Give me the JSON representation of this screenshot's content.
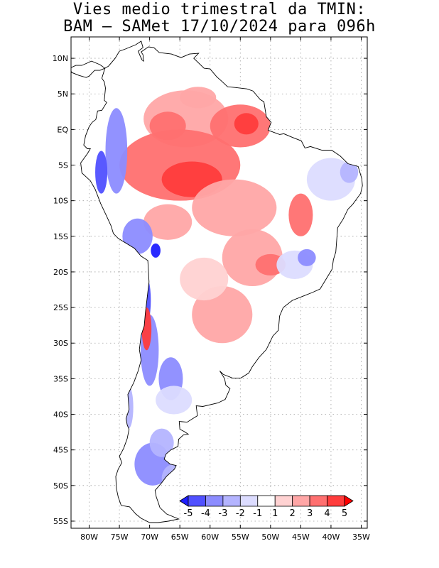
{
  "title": {
    "line1": "Vies medio trimestral da TMIN:",
    "line2": "BAM – SAMet 17/10/2024  para 096h"
  },
  "map": {
    "lon_range": [
      -83,
      -34
    ],
    "lat_range": [
      -56,
      13
    ],
    "grid": "dotted",
    "lat_ticks": [
      {
        "lat": 10,
        "label": "10N"
      },
      {
        "lat": 5,
        "label": "5N"
      },
      {
        "lat": 0,
        "label": "EQ"
      },
      {
        "lat": -5,
        "label": "5S"
      },
      {
        "lat": -10,
        "label": "10S"
      },
      {
        "lat": -15,
        "label": "15S"
      },
      {
        "lat": -20,
        "label": "20S"
      },
      {
        "lat": -25,
        "label": "25S"
      },
      {
        "lat": -30,
        "label": "30S"
      },
      {
        "lat": -35,
        "label": "35S"
      },
      {
        "lat": -40,
        "label": "40S"
      },
      {
        "lat": -45,
        "label": "45S"
      },
      {
        "lat": -50,
        "label": "50S"
      },
      {
        "lat": -55,
        "label": "55S"
      }
    ],
    "lon_ticks": [
      {
        "lon": -80,
        "label": "80W"
      },
      {
        "lon": -75,
        "label": "75W"
      },
      {
        "lon": -70,
        "label": "70W"
      },
      {
        "lon": -65,
        "label": "65W"
      },
      {
        "lon": -60,
        "label": "60W"
      },
      {
        "lon": -55,
        "label": "55W"
      },
      {
        "lon": -50,
        "label": "50W"
      },
      {
        "lon": -45,
        "label": "45W"
      },
      {
        "lon": -40,
        "label": "40W"
      },
      {
        "lon": -35,
        "label": "35W"
      }
    ],
    "continent_outline": [
      [
        -77.4,
        8.6
      ],
      [
        -76.8,
        8.9
      ],
      [
        -75.7,
        10.0
      ],
      [
        -75.0,
        11.0
      ],
      [
        -74.0,
        11.3
      ],
      [
        -72.3,
        11.9
      ],
      [
        -71.4,
        12.4
      ],
      [
        -71.1,
        11.5
      ],
      [
        -71.9,
        11.0
      ],
      [
        -71.6,
        10.4
      ],
      [
        -71.3,
        9.8
      ],
      [
        -71.0,
        9.6
      ],
      [
        -71.1,
        10.5
      ],
      [
        -71.4,
        10.9
      ],
      [
        -70.2,
        11.6
      ],
      [
        -69.3,
        11.5
      ],
      [
        -68.4,
        10.8
      ],
      [
        -66.4,
        10.6
      ],
      [
        -64.8,
        10.1
      ],
      [
        -63.4,
        10.6
      ],
      [
        -61.9,
        10.7
      ],
      [
        -62.7,
        10.0
      ],
      [
        -61.0,
        8.6
      ],
      [
        -60.0,
        8.5
      ],
      [
        -58.9,
        7.4
      ],
      [
        -58.1,
        6.8
      ],
      [
        -57.1,
        6.0
      ],
      [
        -55.9,
        5.9
      ],
      [
        -54.9,
        5.8
      ],
      [
        -53.9,
        5.7
      ],
      [
        -52.9,
        5.4
      ],
      [
        -51.7,
        4.2
      ],
      [
        -51.1,
        3.9
      ],
      [
        -50.7,
        1.8
      ],
      [
        -49.9,
        1.0
      ],
      [
        -50.4,
        -0.1
      ],
      [
        -48.5,
        -0.7
      ],
      [
        -47.8,
        -0.6
      ],
      [
        -46.4,
        -1.1
      ],
      [
        -44.9,
        -1.6
      ],
      [
        -44.3,
        -2.6
      ],
      [
        -43.4,
        -2.4
      ],
      [
        -41.5,
        -2.9
      ],
      [
        -39.9,
        -2.9
      ],
      [
        -38.5,
        -3.7
      ],
      [
        -37.2,
        -4.8
      ],
      [
        -35.5,
        -5.2
      ],
      [
        -34.9,
        -6.9
      ],
      [
        -34.8,
        -7.9
      ],
      [
        -35.1,
        -9.0
      ],
      [
        -36.4,
        -10.5
      ],
      [
        -37.2,
        -11.2
      ],
      [
        -38.0,
        -12.6
      ],
      [
        -38.9,
        -13.8
      ],
      [
        -39.0,
        -15.0
      ],
      [
        -39.2,
        -17.2
      ],
      [
        -39.6,
        -18.3
      ],
      [
        -39.8,
        -19.6
      ],
      [
        -40.8,
        -21.0
      ],
      [
        -41.8,
        -22.4
      ],
      [
        -43.1,
        -22.9
      ],
      [
        -44.6,
        -23.4
      ],
      [
        -46.4,
        -24.0
      ],
      [
        -47.9,
        -25.0
      ],
      [
        -48.5,
        -26.2
      ],
      [
        -48.7,
        -28.2
      ],
      [
        -49.6,
        -29.0
      ],
      [
        -50.7,
        -30.9
      ],
      [
        -51.9,
        -32.0
      ],
      [
        -53.0,
        -33.3
      ],
      [
        -53.6,
        -34.2
      ],
      [
        -54.9,
        -34.9
      ],
      [
        -56.3,
        -34.9
      ],
      [
        -57.8,
        -34.4
      ],
      [
        -58.4,
        -33.9
      ],
      [
        -57.6,
        -35.0
      ],
      [
        -57.4,
        -35.9
      ],
      [
        -56.7,
        -36.4
      ],
      [
        -57.5,
        -37.9
      ],
      [
        -58.7,
        -38.4
      ],
      [
        -61.2,
        -38.9
      ],
      [
        -62.3,
        -38.8
      ],
      [
        -62.1,
        -40.2
      ],
      [
        -63.8,
        -41.1
      ],
      [
        -65.1,
        -41.0
      ],
      [
        -65.0,
        -42.1
      ],
      [
        -64.3,
        -42.4
      ],
      [
        -63.6,
        -42.8
      ],
      [
        -64.4,
        -42.9
      ],
      [
        -65.2,
        -43.5
      ],
      [
        -65.3,
        -44.5
      ],
      [
        -66.5,
        -45.0
      ],
      [
        -67.3,
        -45.6
      ],
      [
        -67.6,
        -46.3
      ],
      [
        -66.6,
        -47.0
      ],
      [
        -65.6,
        -47.2
      ],
      [
        -65.9,
        -47.7
      ],
      [
        -67.2,
        -48.7
      ],
      [
        -68.0,
        -49.6
      ],
      [
        -68.7,
        -50.3
      ],
      [
        -69.1,
        -50.7
      ],
      [
        -68.9,
        -51.6
      ],
      [
        -68.6,
        -52.3
      ],
      [
        -68.3,
        -53.1
      ],
      [
        -67.2,
        -54.0
      ],
      [
        -65.2,
        -54.7
      ],
      [
        -66.9,
        -55.0
      ],
      [
        -68.6,
        -55.2
      ],
      [
        -70.0,
        -55.2
      ],
      [
        -71.4,
        -54.6
      ],
      [
        -72.3,
        -54.0
      ],
      [
        -73.3,
        -53.0
      ],
      [
        -74.7,
        -52.8
      ],
      [
        -75.2,
        -51.6
      ],
      [
        -75.5,
        -50.4
      ],
      [
        -75.6,
        -48.7
      ],
      [
        -75.2,
        -47.7
      ],
      [
        -74.6,
        -46.8
      ],
      [
        -75.0,
        -45.9
      ],
      [
        -74.3,
        -44.8
      ],
      [
        -73.7,
        -43.4
      ],
      [
        -73.4,
        -42.1
      ],
      [
        -73.7,
        -41.5
      ],
      [
        -73.9,
        -40.6
      ],
      [
        -73.4,
        -39.3
      ],
      [
        -73.6,
        -37.2
      ],
      [
        -72.6,
        -35.5
      ],
      [
        -71.9,
        -33.9
      ],
      [
        -71.4,
        -32.4
      ],
      [
        -71.7,
        -30.9
      ],
      [
        -71.4,
        -28.9
      ],
      [
        -70.9,
        -27.6
      ],
      [
        -70.7,
        -25.7
      ],
      [
        -70.4,
        -23.6
      ],
      [
        -70.1,
        -21.4
      ],
      [
        -70.3,
        -18.4
      ],
      [
        -71.4,
        -17.8
      ],
      [
        -72.5,
        -16.7
      ],
      [
        -75.2,
        -15.3
      ],
      [
        -76.0,
        -14.6
      ],
      [
        -76.4,
        -13.5
      ],
      [
        -77.1,
        -12.2
      ],
      [
        -78.1,
        -10.4
      ],
      [
        -79.0,
        -8.4
      ],
      [
        -79.8,
        -7.2
      ],
      [
        -81.2,
        -6.1
      ],
      [
        -81.4,
        -4.7
      ],
      [
        -80.3,
        -3.4
      ],
      [
        -79.8,
        -2.7
      ],
      [
        -80.3,
        -2.7
      ],
      [
        -80.9,
        -2.2
      ],
      [
        -80.6,
        -0.9
      ],
      [
        -80.0,
        0.4
      ],
      [
        -79.5,
        1.0
      ],
      [
        -78.9,
        1.4
      ],
      [
        -78.6,
        2.6
      ],
      [
        -77.9,
        2.7
      ],
      [
        -77.1,
        3.8
      ],
      [
        -77.5,
        4.1
      ],
      [
        -77.3,
        5.8
      ],
      [
        -77.5,
        6.7
      ],
      [
        -77.9,
        7.2
      ],
      [
        -77.4,
        8.6
      ]
    ],
    "central_america_outline": [
      [
        -77.4,
        8.6
      ],
      [
        -78.2,
        9.1
      ],
      [
        -79.6,
        9.6
      ],
      [
        -81.2,
        9.0
      ],
      [
        -82.2,
        9.0
      ],
      [
        -83.2,
        8.6
      ],
      [
        -82.9,
        8.0
      ],
      [
        -81.7,
        7.6
      ],
      [
        -80.5,
        7.3
      ],
      [
        -80.0,
        7.5
      ],
      [
        -79.1,
        8.3
      ],
      [
        -78.2,
        8.3
      ],
      [
        -77.4,
        8.6
      ]
    ],
    "anomaly_blobs": [
      {
        "lon": -64,
        "lat": 1.5,
        "rx": 7,
        "ry": 4,
        "value": 2
      },
      {
        "lon": -65,
        "lat": -5,
        "rx": 10,
        "ry": 5,
        "value": 3
      },
      {
        "lon": -63,
        "lat": -7,
        "rx": 5,
        "ry": 2.5,
        "value": 4
      },
      {
        "lon": -55,
        "lat": 0.5,
        "rx": 5,
        "ry": 3,
        "value": 3
      },
      {
        "lon": -54,
        "lat": 0.8,
        "rx": 2,
        "ry": 1.5,
        "value": 4
      },
      {
        "lon": -67,
        "lat": 0.5,
        "rx": 3,
        "ry": 2,
        "value": 3
      },
      {
        "lon": -62,
        "lat": 4.5,
        "rx": 3,
        "ry": 1.5,
        "value": 2
      },
      {
        "lon": -56,
        "lat": -11,
        "rx": 7,
        "ry": 4,
        "value": 2
      },
      {
        "lon": -67,
        "lat": -13,
        "rx": 4,
        "ry": 2.5,
        "value": 2
      },
      {
        "lon": -45,
        "lat": -12,
        "rx": 2,
        "ry": 3,
        "value": 3
      },
      {
        "lon": -53,
        "lat": -18,
        "rx": 5,
        "ry": 4,
        "value": 2
      },
      {
        "lon": -50,
        "lat": -19,
        "rx": 2.5,
        "ry": 1.5,
        "value": 3
      },
      {
        "lon": -58,
        "lat": -26,
        "rx": 5,
        "ry": 4,
        "value": 2
      },
      {
        "lon": -61,
        "lat": -21,
        "rx": 4,
        "ry": 3,
        "value": 1
      },
      {
        "lon": -40,
        "lat": -7,
        "rx": 4,
        "ry": 3,
        "value": -1
      },
      {
        "lon": -37,
        "lat": -6,
        "rx": 1.5,
        "ry": 1.5,
        "value": -2
      },
      {
        "lon": -46,
        "lat": -19,
        "rx": 3,
        "ry": 2,
        "value": -1
      },
      {
        "lon": -44,
        "lat": -18,
        "rx": 1.5,
        "ry": 1.2,
        "value": -3
      },
      {
        "lon": -75.5,
        "lat": -3,
        "rx": 1.8,
        "ry": 6,
        "value": -3
      },
      {
        "lon": -78,
        "lat": -6,
        "rx": 1,
        "ry": 3,
        "value": -4
      },
      {
        "lon": -72,
        "lat": -15,
        "rx": 2.5,
        "ry": 2.5,
        "value": -3
      },
      {
        "lon": -69,
        "lat": -17,
        "rx": 0.8,
        "ry": 1,
        "value": -5
      },
      {
        "lon": -71,
        "lat": -24,
        "rx": 1.2,
        "ry": 4,
        "value": -4
      },
      {
        "lon": -70,
        "lat": -31,
        "rx": 1.5,
        "ry": 5,
        "value": -3
      },
      {
        "lon": -70.5,
        "lat": -28,
        "rx": 0.8,
        "ry": 3,
        "value": 4
      },
      {
        "lon": -66.5,
        "lat": -35,
        "rx": 2,
        "ry": 3,
        "value": -3
      },
      {
        "lon": -69.5,
        "lat": -47,
        "rx": 3,
        "ry": 3,
        "value": -3
      },
      {
        "lon": -68,
        "lat": -44,
        "rx": 2,
        "ry": 2,
        "value": -2
      },
      {
        "lon": -66,
        "lat": -49,
        "rx": 2,
        "ry": 2,
        "value": -2
      },
      {
        "lon": -66,
        "lat": -38,
        "rx": 3,
        "ry": 2,
        "value": -1
      },
      {
        "lon": -73.5,
        "lat": -39,
        "rx": 0.8,
        "ry": 3,
        "value": -2
      }
    ]
  },
  "colorbar": {
    "labels": [
      "-5",
      "-4",
      "-3",
      "-2",
      "-1",
      "1",
      "2",
      "3",
      "4",
      "5"
    ],
    "colors": [
      "#1e1eff",
      "#5050ff",
      "#8c8cff",
      "#b4b4ff",
      "#dcdcff",
      "#ffffff",
      "#ffd2d2",
      "#ffa6a6",
      "#ff7070",
      "#ff3c3c",
      "#ff0000"
    ]
  }
}
